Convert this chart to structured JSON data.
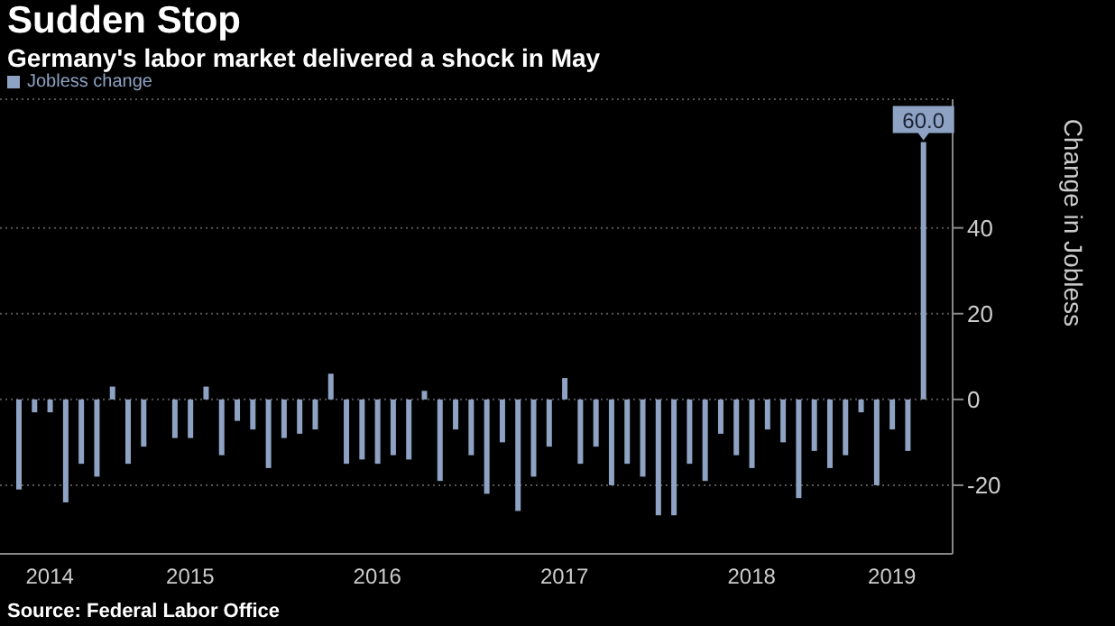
{
  "chart_data": {
    "type": "bar",
    "title": "Sudden Stop",
    "subtitle": "Germany's labor market delivered a shock in May",
    "ylabel": "Change in Jobless",
    "annotations": [
      "Source: Federal Labor Office"
    ],
    "categories": [
      null,
      null,
      "2014",
      null,
      null,
      null,
      null,
      null,
      null,
      null,
      null,
      "2015",
      null,
      null,
      null,
      null,
      null,
      null,
      null,
      null,
      null,
      null,
      null,
      "2016",
      null,
      null,
      null,
      null,
      null,
      null,
      null,
      null,
      null,
      null,
      null,
      "2017",
      null,
      null,
      null,
      null,
      null,
      null,
      null,
      null,
      null,
      null,
      null,
      "2018",
      null,
      null,
      null,
      null,
      null,
      null,
      null,
      null,
      "2019",
      null,
      null
    ],
    "series": [
      {
        "name": "Jobless change",
        "color": "#8ea3c4",
        "values": [
          -21,
          -3,
          -3,
          -24,
          -15,
          -18,
          3,
          -15,
          -11,
          0,
          -9,
          -9,
          3,
          -13,
          -5,
          -7,
          -16,
          -9,
          -8,
          -7,
          6,
          -15,
          -14,
          -15,
          -13,
          -14,
          2,
          -19,
          -7,
          -13,
          -22,
          -10,
          -26,
          -18,
          -11,
          5,
          -15,
          -11,
          -20,
          -15,
          -18,
          -27,
          -27,
          -15,
          -19,
          -8,
          -13,
          -16,
          -7,
          -10,
          -23,
          -12,
          -16,
          -13,
          -3,
          -20,
          -7,
          -12,
          60
        ],
        "value_labels": [
          null,
          null,
          null,
          null,
          null,
          null,
          null,
          null,
          null,
          null,
          null,
          null,
          null,
          null,
          null,
          null,
          null,
          null,
          null,
          null,
          null,
          null,
          null,
          null,
          null,
          null,
          null,
          null,
          null,
          null,
          null,
          null,
          null,
          null,
          null,
          null,
          null,
          null,
          null,
          null,
          null,
          null,
          null,
          null,
          null,
          null,
          null,
          null,
          null,
          null,
          null,
          null,
          null,
          null,
          null,
          null,
          null,
          null,
          "60.0"
        ]
      }
    ],
    "ylim": [
      -36,
      70
    ],
    "yticks": [
      -20,
      0,
      20,
      40
    ],
    "grid": "y",
    "legend": "top left"
  }
}
